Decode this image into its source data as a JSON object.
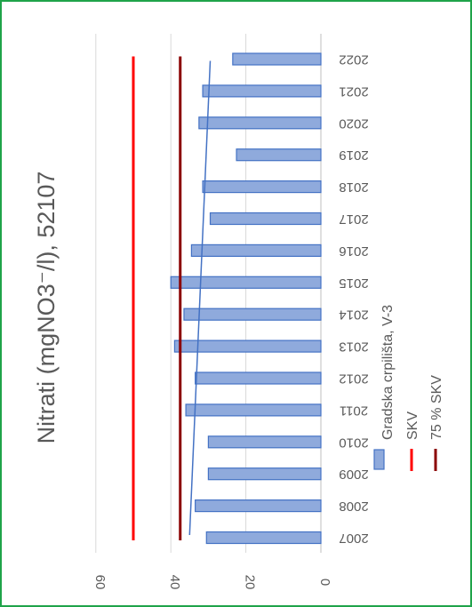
{
  "chart_data": {
    "type": "bar",
    "orientation": "rotated-90-clockwise",
    "title": "Nitrati (mgNO3⁻/l), 52107",
    "categories": [
      "2007",
      "2008",
      "2009",
      "2010",
      "2011",
      "2012",
      "2013",
      "2014",
      "2015",
      "2016",
      "2017",
      "2018",
      "2019",
      "2020",
      "2021",
      "2022"
    ],
    "series": [
      {
        "name": "Gradska crpilišta,  V-3",
        "kind": "bar",
        "values": [
          30.5,
          33.5,
          30.0,
          30.0,
          36.0,
          33.5,
          39.0,
          36.5,
          40.0,
          34.5,
          29.5,
          31.5,
          22.5,
          32.5,
          31.5,
          23.5
        ]
      },
      {
        "name": "SKV",
        "kind": "line",
        "value": 50
      },
      {
        "name": "75 % SKV",
        "kind": "line",
        "value": 37.5
      }
    ],
    "trendline": {
      "start": 35.0,
      "end": 29.5
    },
    "ylim": [
      0,
      60
    ],
    "yticks": [
      0,
      20,
      40,
      60
    ],
    "grid": true,
    "legend_position": "bottom",
    "colors": {
      "bar_fill": "#8faadc",
      "bar_stroke": "#4472c4",
      "skv": "#ff0000",
      "skv75": "#8b0000",
      "trend": "#4472c4",
      "grid": "#d9d9d9",
      "text": "#595959",
      "border": "#1fa34a"
    }
  }
}
